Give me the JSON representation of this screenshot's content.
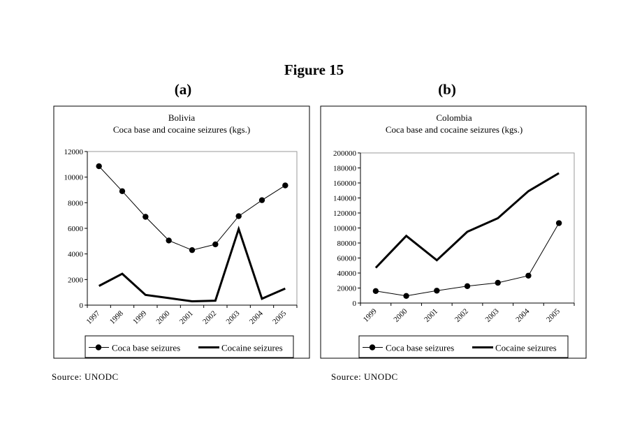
{
  "figure_title": "Figure 15",
  "chart_data": [
    {
      "panel_label": "(a)",
      "type": "line",
      "title": "Bolivia",
      "subtitle": "Coca base and cocaine seizures (kgs.)",
      "categories": [
        "1997",
        "1998",
        "1999",
        "2000",
        "2001",
        "2002",
        "2003",
        "2004",
        "2005"
      ],
      "yticks": [
        "0",
        "2000",
        "4000",
        "6000",
        "8000",
        "10000",
        "12000"
      ],
      "ylim": [
        0,
        12000
      ],
      "series": [
        {
          "name": "Coca base seizures",
          "style": "thin-markers",
          "values": [
            10850,
            8900,
            6900,
            5050,
            4300,
            4750,
            6950,
            8200,
            9350
          ]
        },
        {
          "name": "Cocaine seizures",
          "style": "thick",
          "values": [
            1500,
            2450,
            800,
            550,
            300,
            350,
            5950,
            500,
            1300
          ]
        }
      ],
      "legend": "bottom",
      "source": "Source: UNODC"
    },
    {
      "panel_label": "(b)",
      "type": "line",
      "title": "Colombia",
      "subtitle": "Coca base and cocaine seizures (kgs.)",
      "categories": [
        "1999",
        "2000",
        "2001",
        "2002",
        "2003",
        "2004",
        "2005"
      ],
      "yticks": [
        "0",
        "20000",
        "40000",
        "60000",
        "80000",
        "100000",
        "120000",
        "140000",
        "160000",
        "180000",
        "200000"
      ],
      "ylim": [
        0,
        200000
      ],
      "series": [
        {
          "name": "Coca base seizures",
          "style": "thin-markers",
          "values": [
            16000,
            9500,
            16500,
            22500,
            27000,
            36500,
            106500
          ]
        },
        {
          "name": "Cocaine seizures",
          "style": "thick",
          "values": [
            47000,
            89500,
            57000,
            95000,
            113000,
            149000,
            173000
          ]
        }
      ],
      "legend": "bottom",
      "source": "Source: UNODC"
    }
  ]
}
